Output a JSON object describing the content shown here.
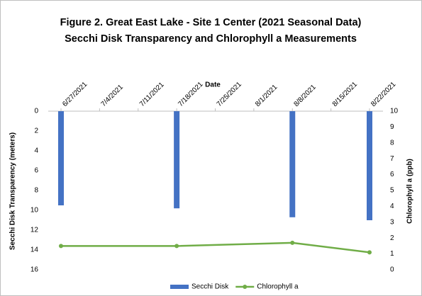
{
  "chart_data": {
    "type": "bar_line",
    "title": "Figure 2. Great East Lake - Site 1 Center (2021 Seasonal Data)",
    "subtitle": "Secchi Disk Transparency and Chlorophyll a Measurements",
    "x_label": "Date",
    "y_label": "Secchi Disk Transparency  (meters)",
    "y2_label": "Chlorophyll a (ppb)",
    "x": [
      "6/27/2021",
      "7/18/2021",
      "8/8/2021",
      "8/22/2021"
    ],
    "xlim": [
      "6/27/2021",
      "8/22/2021"
    ],
    "xticks": [
      "6/27/2021",
      "7/4/2021",
      "7/11/2021",
      "7/18/2021",
      "7/25/2021",
      "8/1/2021",
      "8/8/2021",
      "8/15/2021",
      "8/22/2021"
    ],
    "ylim": [
      0,
      16
    ],
    "yticks": [
      0,
      2,
      4,
      6,
      8,
      10,
      12,
      14,
      16
    ],
    "y_inverted": true,
    "y2lim": [
      0,
      10
    ],
    "y2ticks": [
      0,
      1,
      2,
      3,
      4,
      5,
      6,
      7,
      8,
      9,
      10
    ],
    "series": [
      {
        "name": "Secchi Disk",
        "type": "bar",
        "color": "#4472c4",
        "values": [
          9.5,
          9.8,
          10.7,
          11.0
        ]
      },
      {
        "name": "Chlorophyll a",
        "type": "line",
        "axis": "y2",
        "color": "#70ad47",
        "values": [
          1.5,
          1.5,
          1.7,
          1.1
        ]
      }
    ],
    "legend": "bottom"
  }
}
